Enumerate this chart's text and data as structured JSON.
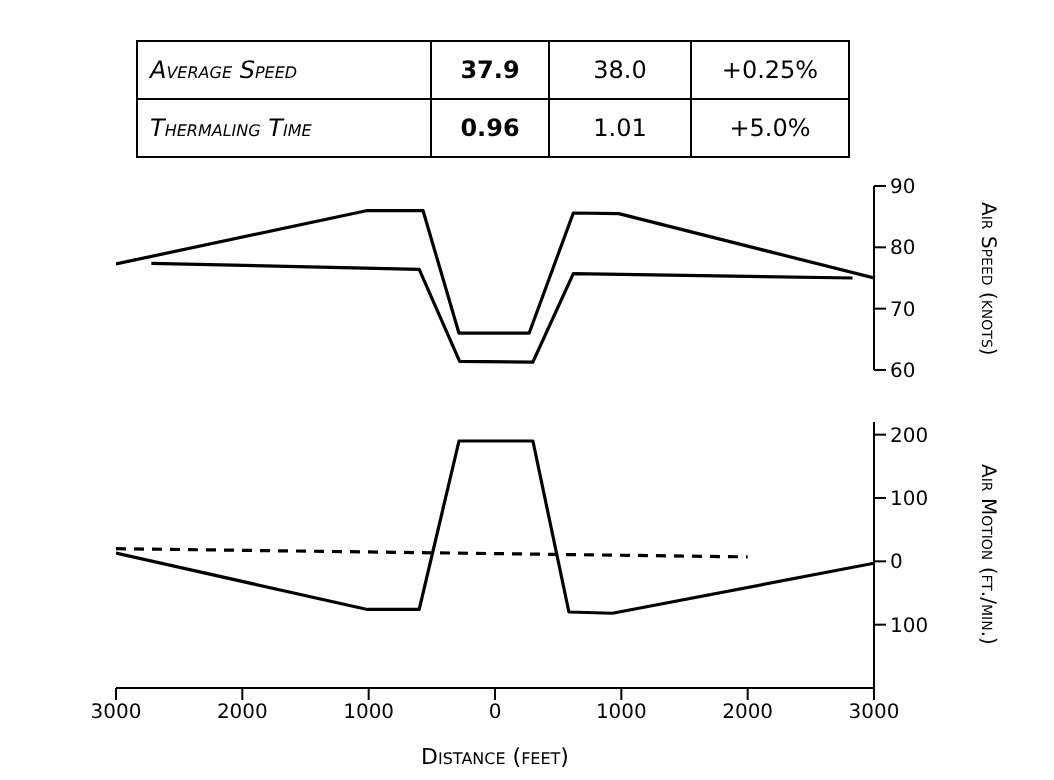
{
  "chart_data": [
    {
      "type": "line",
      "ylabel": "Air Speed (knots)",
      "annotations": [
        "Average Speed",
        "37.9",
        "38.0",
        "+0.25%",
        "Thermaling Time",
        "0.96",
        "1.01",
        "+5.0%"
      ],
      "xlim": [
        -3000,
        3000
      ],
      "tick_labels": "y",
      "ylim": [
        60,
        90
      ],
      "yticks": [
        60,
        70,
        80,
        90
      ],
      "series": [
        {
          "color": "#000000",
          "x": [
            -3000,
            -1010,
            -570,
            -285,
            270,
            620,
            980,
            3000
          ],
          "values": [
            77.3,
            86,
            86,
            66,
            66,
            85.6,
            85.5,
            75
          ]
        },
        {
          "color": "#000000",
          "x": [
            -2720,
            -600,
            -280,
            300,
            620,
            2830
          ],
          "values": [
            77.4,
            76.4,
            61.4,
            61.3,
            75.7,
            75
          ]
        }
      ]
    },
    {
      "type": "line",
      "ylabel": "Air Motion (ft./min.)",
      "xlabel": "Distance (feet)",
      "xlim": [
        -3000,
        3000
      ],
      "xticks": [
        {
          "value": -3000,
          "label": "3000"
        },
        {
          "value": -2000,
          "label": "2000"
        },
        {
          "value": -1000,
          "label": "1000"
        },
        0,
        1000,
        2000,
        3000
      ],
      "ylim": [
        -200,
        220
      ],
      "yticks": [
        {
          "value": -100,
          "label": "100"
        },
        0,
        100,
        200
      ],
      "series": [
        {
          "color": "#000000",
          "x": [
            -3000,
            -1010,
            -600,
            -285,
            300,
            585,
            930,
            3000
          ],
          "values": [
            13,
            -76,
            -76,
            190,
            190,
            -80,
            -82,
            -3
          ]
        },
        {
          "color": "#000000",
          "line_style": "dashed",
          "x": [
            -3000,
            2000
          ],
          "values": [
            20,
            7
          ]
        }
      ]
    }
  ]
}
